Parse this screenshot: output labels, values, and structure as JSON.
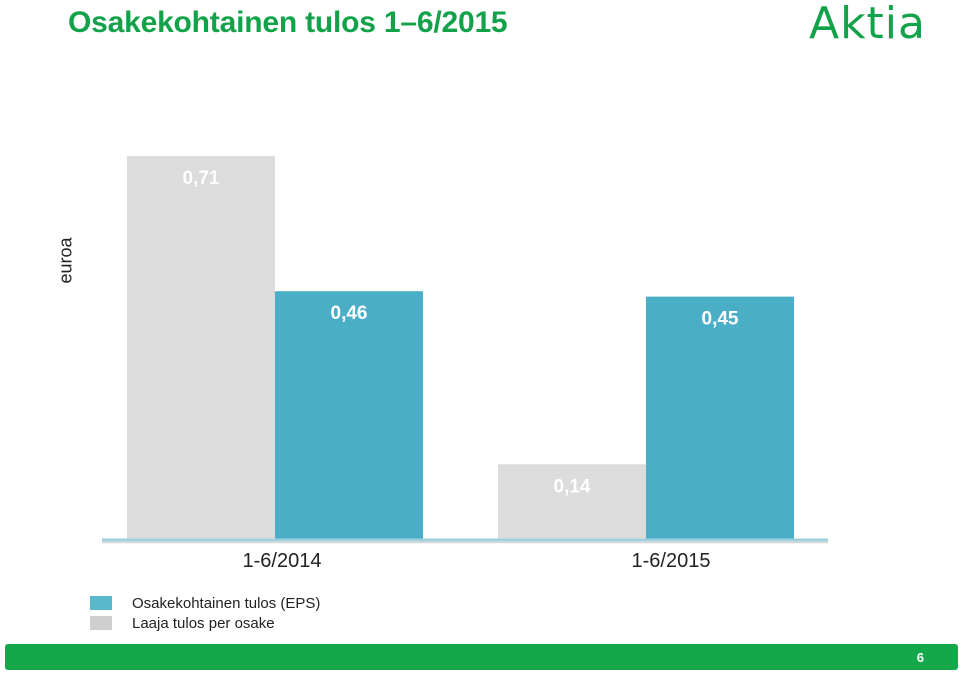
{
  "header": {
    "title": "Osakekohtainen tulos 1–6/2015",
    "logo_text": "Aktia"
  },
  "footer": {
    "page_number": "6"
  },
  "colors": {
    "brand_green": "#12a24a",
    "eps_blue": "#4aaec7",
    "comprehensive_gray": "#dcdcdc",
    "axis_line": "#9fd0dc"
  },
  "chart_data": {
    "type": "bar",
    "title": "Osakekohtainen tulos 1–6/2015",
    "ylabel": "euroa",
    "xlabel": "",
    "categories": [
      "1-6/2014",
      "1-6/2015"
    ],
    "series": [
      {
        "name": "Laaja tulos per osake",
        "color": "#dcdcdc",
        "values": [
          0.71,
          0.14
        ],
        "labels": [
          "0,71",
          "0,14"
        ]
      },
      {
        "name": "Osakekohtainen tulos (EPS)",
        "color": "#4aaec7",
        "values": [
          0.46,
          0.45
        ],
        "labels": [
          "0,46",
          "0,45"
        ]
      }
    ],
    "ylim": [
      0,
      0.71
    ],
    "grid": false,
    "legend_position": "bottom-left",
    "legend": [
      {
        "label": "Osakekohtainen tulos (EPS)",
        "color": "#5ab8cc"
      },
      {
        "label": "Laaja tulos per osake",
        "color": "#cfcfcf"
      }
    ]
  }
}
